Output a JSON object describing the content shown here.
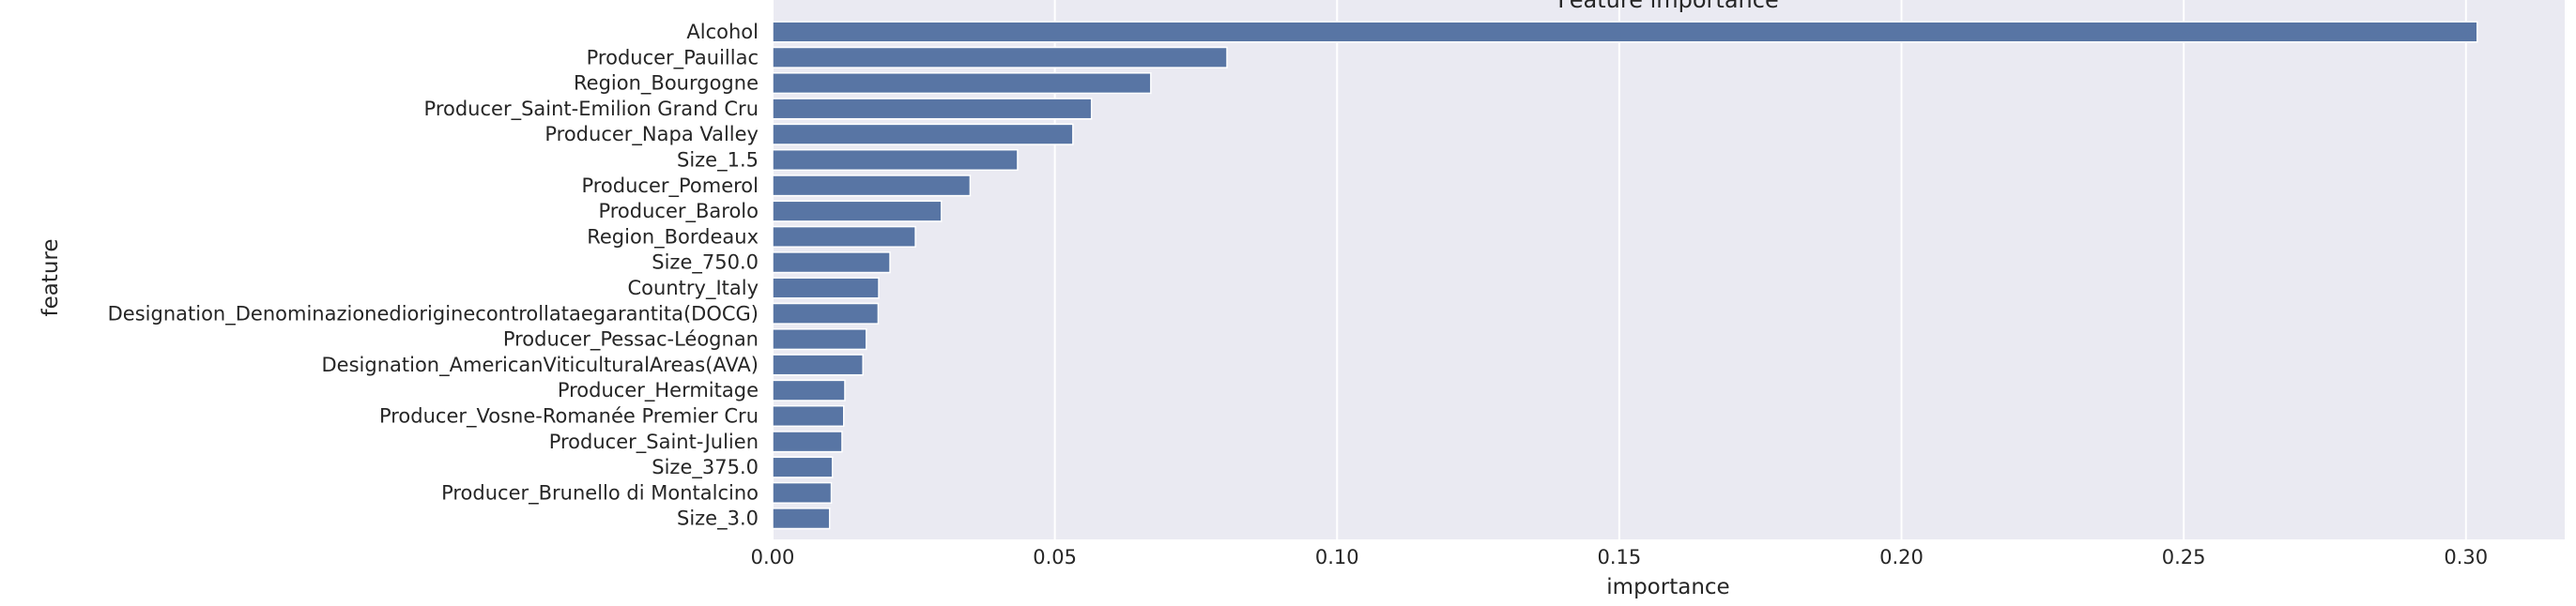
{
  "chart_data": {
    "type": "bar",
    "orientation": "horizontal",
    "title": "Feature importance",
    "xlabel": "importance",
    "ylabel": "feature",
    "xlim": [
      0,
      0.3175
    ],
    "xticks": [
      0.0,
      0.05,
      0.1,
      0.15,
      0.2,
      0.25,
      0.3
    ],
    "xtick_labels": [
      "0.00",
      "0.05",
      "0.10",
      "0.15",
      "0.20",
      "0.25",
      "0.30"
    ],
    "grid": true,
    "bar_color": "#5875a4",
    "background_color": "#eaeaf2",
    "grid_color": "#ffffff",
    "categories": [
      "Alcohol",
      "Producer_Pauillac",
      "Region_Bourgogne",
      "Producer_Saint-Emilion Grand Cru",
      "Producer_Napa Valley",
      "Size_1.5",
      "Producer_Pomerol",
      "Producer_Barolo",
      "Region_Bordeaux",
      "Size_750.0",
      "Country_Italy",
      "Designation_Denominazionedioriginecontrollataegarantita(DOCG)",
      "Producer_Pessac-Léognan",
      "Designation_AmericanViticulturalAreas(AVA)",
      "Producer_Hermitage",
      "Producer_Vosne-Romanée Premier Cru",
      "Producer_Saint-Julien",
      "Size_375.0",
      "Producer_Brunello di Montalcino",
      "Size_3.0"
    ],
    "values": [
      0.302,
      0.0805,
      0.067,
      0.0565,
      0.0532,
      0.0434,
      0.035,
      0.0299,
      0.0253,
      0.0208,
      0.0188,
      0.0187,
      0.0166,
      0.016,
      0.0128,
      0.0126,
      0.0123,
      0.0106,
      0.0104,
      0.0101
    ]
  }
}
